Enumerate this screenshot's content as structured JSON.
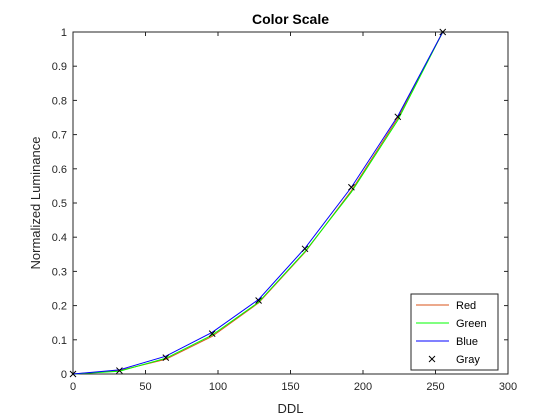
{
  "chart_data": {
    "type": "line",
    "title": "Color Scale",
    "xlabel": "DDL",
    "ylabel": "Normalized Luminance",
    "xlim": [
      0,
      300
    ],
    "ylim": [
      0,
      1
    ],
    "xticks": [
      0,
      50,
      100,
      150,
      200,
      250,
      300
    ],
    "yticks": [
      0,
      0.1,
      0.2,
      0.3,
      0.4,
      0.5,
      0.6,
      0.7,
      0.8,
      0.9,
      1
    ],
    "xtick_labels": [
      "0",
      "50",
      "100",
      "150",
      "200",
      "250",
      "300"
    ],
    "ytick_labels": [
      "0",
      "0.1",
      "0.2",
      "0.3",
      "0.4",
      "0.5",
      "0.6",
      "0.7",
      "0.8",
      "0.9",
      "1"
    ],
    "grid": false,
    "legend_position": "bottom-right",
    "x": [
      0,
      32,
      64,
      96,
      128,
      160,
      192,
      224,
      255
    ],
    "series": [
      {
        "name": "Red",
        "style": "line",
        "color": "#d95319",
        "values": [
          0,
          0.01,
          0.043,
          0.11,
          0.208,
          0.356,
          0.536,
          0.748,
          1.0
        ]
      },
      {
        "name": "Green",
        "style": "line",
        "color": "#00ff00",
        "values": [
          0,
          0.008,
          0.046,
          0.114,
          0.21,
          0.358,
          0.532,
          0.742,
          1.0
        ]
      },
      {
        "name": "Blue",
        "style": "line",
        "color": "#0000ff",
        "values": [
          0,
          0.012,
          0.052,
          0.122,
          0.218,
          0.368,
          0.546,
          0.754,
          1.0
        ]
      },
      {
        "name": "Gray",
        "style": "marker",
        "color": "#000000",
        "values": [
          0,
          0.01,
          0.048,
          0.118,
          0.215,
          0.366,
          0.546,
          0.752,
          1.0
        ]
      }
    ]
  }
}
